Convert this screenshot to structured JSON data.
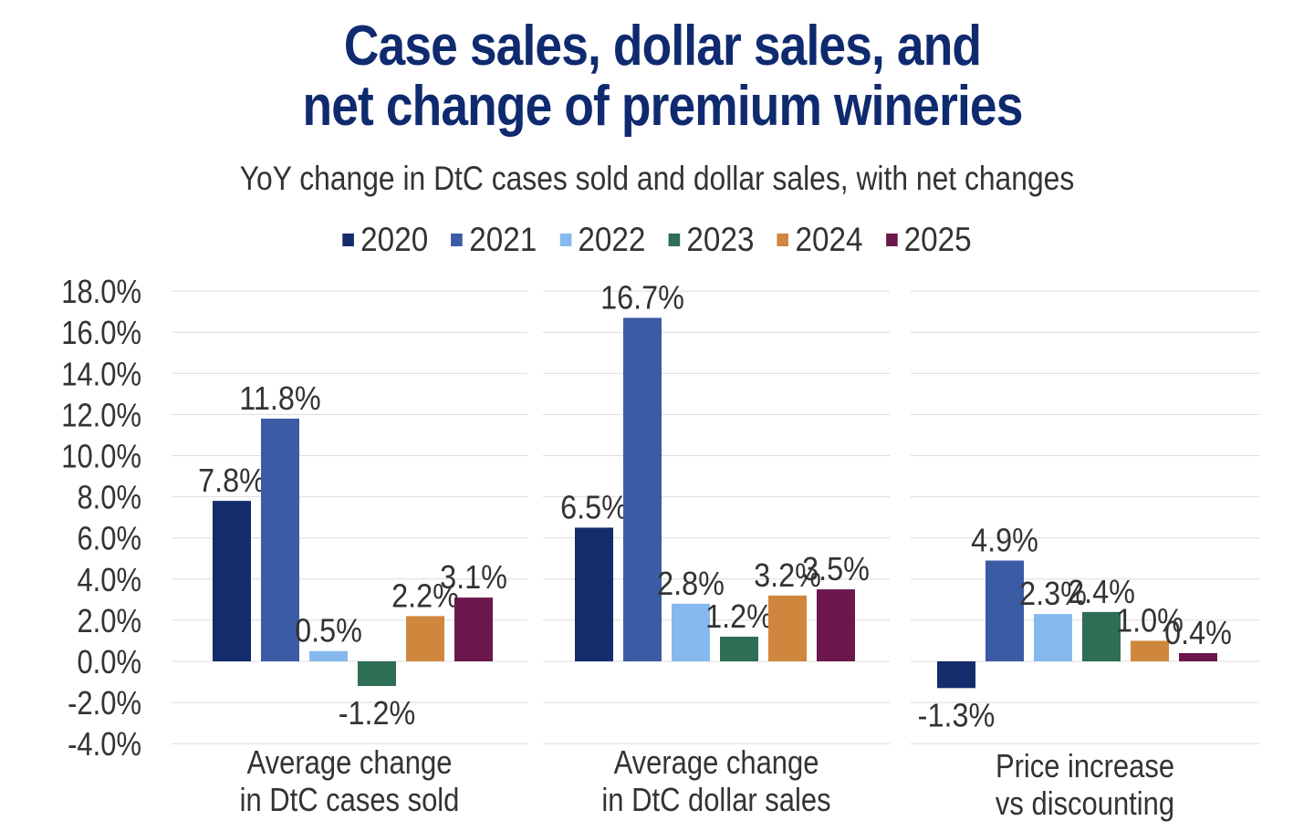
{
  "title_line1": "Case sales, dollar sales, and",
  "title_line2": "net change of premium wineries",
  "subtitle": "YoY change in DtC cases sold and dollar sales, with net changes",
  "chart_data": {
    "type": "bar",
    "title": "Case sales, dollar sales, and net change of premium wineries",
    "subtitle": "YoY change in DtC cases sold and dollar sales, with net changes",
    "xlabel": "",
    "ylabel": "",
    "ylim": [
      -4.0,
      18.0
    ],
    "y_ticks": [
      "18.0%",
      "16.0%",
      "14.0%",
      "12.0%",
      "10.0%",
      "8.0%",
      "6.0%",
      "4.0%",
      "2.0%",
      "0.0%",
      "-2.0%",
      "-4.0%"
    ],
    "y_tick_values": [
      18,
      16,
      14,
      12,
      10,
      8,
      6,
      4,
      2,
      0,
      -2,
      -4
    ],
    "grid": true,
    "legend_position": "top",
    "categories": [
      [
        "Average change",
        "in DtC cases sold"
      ],
      [
        "Average change",
        "in DtC dollar sales"
      ],
      [
        "Price increase",
        "vs discounting"
      ]
    ],
    "series": [
      {
        "name": "2020",
        "color": "#142c6b",
        "values": [
          7.8,
          6.5,
          -1.3
        ],
        "labels": [
          "7.8%",
          "6.5%",
          "-1.3%"
        ]
      },
      {
        "name": "2021",
        "color": "#3b5ba5",
        "values": [
          11.8,
          16.7,
          4.9
        ],
        "labels": [
          "11.8%",
          "16.7%",
          "4.9%"
        ]
      },
      {
        "name": "2022",
        "color": "#85b9ee",
        "values": [
          0.5,
          2.8,
          2.3
        ],
        "labels": [
          "0.5%",
          "2.8%",
          "2.3%"
        ]
      },
      {
        "name": "2023",
        "color": "#2e6e54",
        "values": [
          -1.2,
          1.2,
          2.4
        ],
        "labels": [
          "-1.2%",
          "1.2%",
          "2.4%"
        ]
      },
      {
        "name": "2024",
        "color": "#cf873e",
        "values": [
          2.2,
          3.2,
          1.0
        ],
        "labels": [
          "2.2%",
          "3.2%",
          "1.0%"
        ]
      },
      {
        "name": "2025",
        "color": "#6c184c",
        "values": [
          3.1,
          3.5,
          0.4
        ],
        "labels": [
          "3.1%",
          "3.5%",
          "0.4%"
        ]
      }
    ]
  }
}
